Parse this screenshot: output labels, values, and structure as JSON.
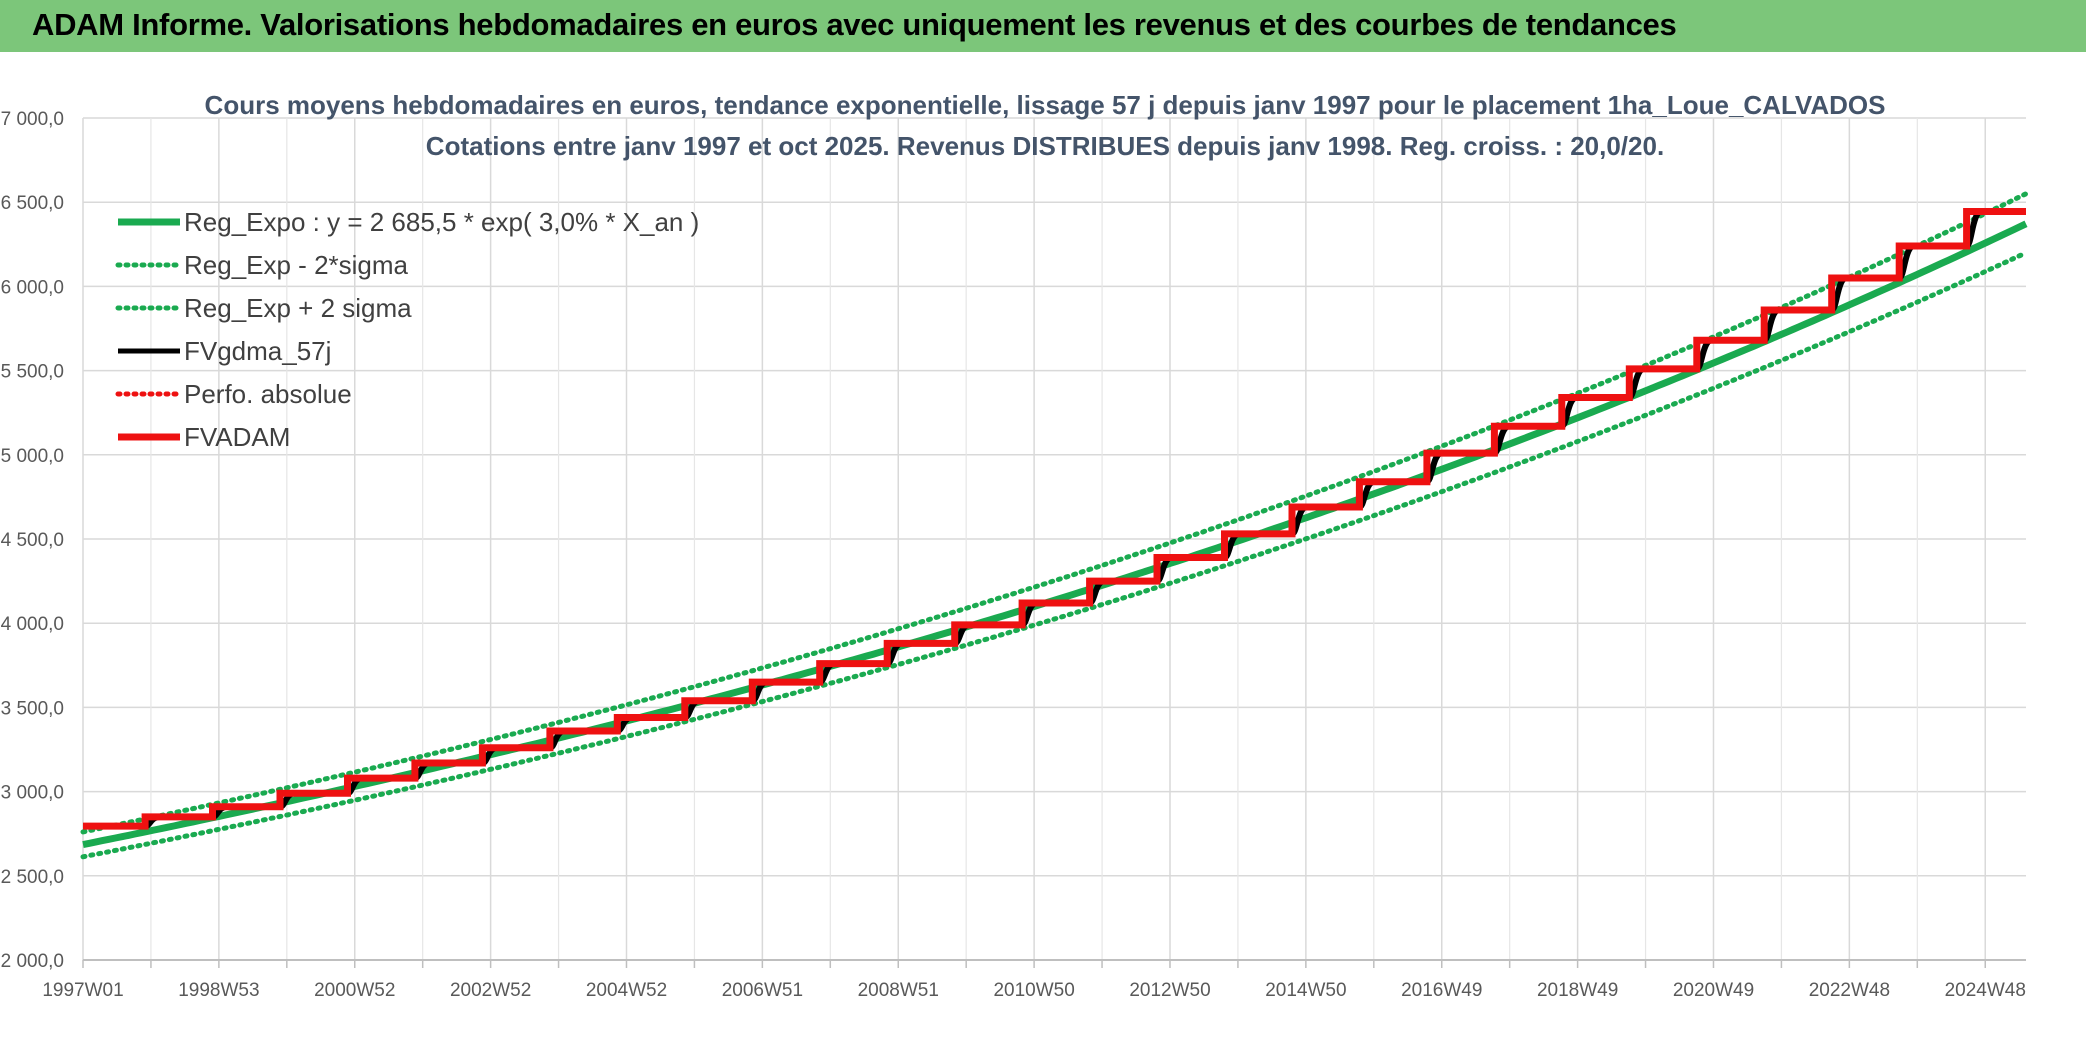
{
  "header": {
    "title": "ADAM Informe. Valorisations hebdomadaires en euros avec uniquement les revenus et des courbes de tendances"
  },
  "colors": {
    "header_bg": "#7cc67a",
    "accent": "#f2c31b",
    "reg_green": "#1aaa50",
    "fvadam_red": "#ee1111",
    "fvgdma_black": "#000000"
  },
  "chart_data": {
    "type": "line",
    "title_line1": "Cours moyens hebdomadaires en euros, tendance exponentielle, lissage 57 j depuis janv 1997 pour le placement 1ha_Loue_CALVADOS",
    "title_line2": "Cotations entre janv 1997 et oct 2025. Revenus DISTRIBUES depuis janv 1998. Reg. croiss. : 20,0/20.",
    "xlabel": "",
    "ylabel": "",
    "x_range_years": [
      1997.0,
      2025.8
    ],
    "ylim": [
      2000,
      7000
    ],
    "y_ticks": [
      "2 000,0",
      "2 500,0",
      "3 000,0",
      "3 500,0",
      "4 000,0",
      "4 500,0",
      "5 000,0",
      "5 500,0",
      "6 000,0",
      "6 500,0",
      "7 000,0"
    ],
    "y_tick_values": [
      2000,
      2500,
      3000,
      3500,
      4000,
      4500,
      5000,
      5500,
      6000,
      6500,
      7000
    ],
    "x_ticks": [
      "1997W01",
      "1998W53",
      "2000W52",
      "2002W52",
      "2004W52",
      "2006W51",
      "2008W51",
      "2010W50",
      "2012W50",
      "2014W50",
      "2016W49",
      "2018W49",
      "2020W49",
      "2022W48",
      "2024W48"
    ],
    "grid": true,
    "legend_position": "top-left",
    "regression": {
      "a": 2685.5,
      "rate": 0.03,
      "minus_2sigma_factor": 0.973,
      "plus_2sigma_factor": 1.028
    },
    "series": [
      {
        "name": "Reg_Expo : y = 2 685,5 * exp( 3,0% *  X_an )",
        "color": "#1aaa50",
        "style": "solid-thick"
      },
      {
        "name": "Reg_Exp - 2*sigma",
        "color": "#1aaa50",
        "style": "dotted"
      },
      {
        "name": "Reg_Exp + 2 sigma",
        "color": "#1aaa50",
        "style": "dotted"
      },
      {
        "name": "FVgdma_57j",
        "color": "#000000",
        "style": "solid"
      },
      {
        "name": "Perfo. absolue",
        "color": "#ee1111",
        "style": "dotted"
      },
      {
        "name": "FVADAM",
        "color": "#ee1111",
        "style": "solid-thick"
      }
    ],
    "fvadam_steps": {
      "years": [
        1997,
        1998,
        1999,
        2000,
        2001,
        2002,
        2003,
        2004,
        2005,
        2006,
        2007,
        2008,
        2009,
        2010,
        2011,
        2012,
        2013,
        2014,
        2015,
        2016,
        2017,
        2018,
        2019,
        2020,
        2021,
        2022,
        2023,
        2024,
        2025
      ],
      "values": [
        2795,
        2850,
        2910,
        2990,
        3080,
        3170,
        3260,
        3360,
        3440,
        3540,
        3650,
        3760,
        3880,
        3990,
        4120,
        4250,
        4390,
        4530,
        4690,
        4840,
        5010,
        5170,
        5340,
        5510,
        5680,
        5860,
        6050,
        6240,
        6445
      ]
    }
  }
}
